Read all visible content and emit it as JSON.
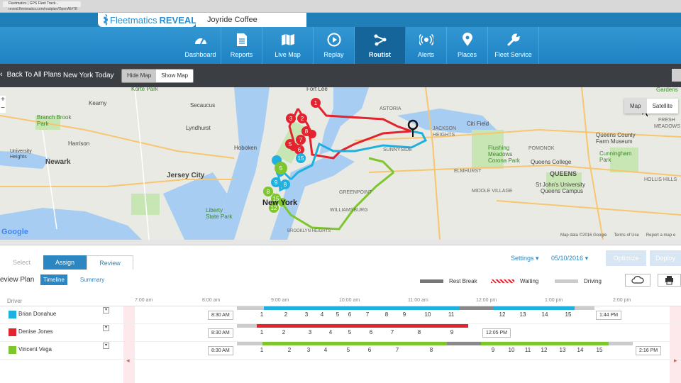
{
  "browser": {
    "tab_title": "Fleetmatics | GPS Fleet Track...",
    "url": "reveal.fleetmatics.com/routplan/OpenAll#78"
  },
  "brand": {
    "name": "Fleetmatics",
    "product": "REVEAL",
    "company": "Joyride Coffee"
  },
  "nav": [
    {
      "label": "Dashboard",
      "icon": "dashboard-icon",
      "active": false
    },
    {
      "label": "Reports",
      "icon": "document-icon",
      "active": false
    },
    {
      "label": "Live Map",
      "icon": "map-icon",
      "active": false
    },
    {
      "label": "Replay",
      "icon": "play-icon",
      "active": false
    },
    {
      "label": "Routist",
      "icon": "route-icon",
      "active": true
    },
    {
      "label": "Alerts",
      "icon": "alert-icon",
      "active": false
    },
    {
      "label": "Places",
      "icon": "pin-icon",
      "active": false
    },
    {
      "label": "Fleet Service",
      "icon": "wrench-icon",
      "active": false
    }
  ],
  "subbar": {
    "back_label": "Back To All Plans",
    "plan_name": "New York Today",
    "hide_map": "Hide Map",
    "show_map": "Show Map"
  },
  "map": {
    "type_map": "Map",
    "type_satellite": "Satellite",
    "credit": "Map data ©2016 Google",
    "terms": "Terms of Use",
    "report": "Report a map e",
    "google": "Google",
    "labels": [
      "Korte Park",
      "Branch Brook Park",
      "Secaucus",
      "Newark",
      "Jersey City",
      "Hoboken",
      "New York",
      "Liberty State Park",
      "Citi Field",
      "Flushing Meadows Corona Park",
      "QUEENS",
      "Queens County Farm Museum",
      "Cunningham Park",
      "Queens College",
      "St John's University Queens Campus",
      "ASTORIA",
      "SUNNYSIDE",
      "JACKSON HEIGHTS",
      "WILLIAMSBURG",
      "BROOKLYN HEIGHTS",
      "University Heights",
      "Kearny",
      "Harrison",
      "Gardens",
      "FRESH MEADOWS",
      "POMONOK",
      "HOLLIS HILLS",
      "Fort Lee",
      "ELMHURST",
      "MIDDLE VILLAGE",
      "GREENPOINT",
      "Lyndhurst"
    ],
    "colors": {
      "blue": "#1fb0e0",
      "red": "#e3232d",
      "green": "#7dc62d"
    }
  },
  "panel": {
    "steps": [
      "Select",
      "Assign",
      "Review"
    ],
    "settings": "Settings",
    "date": "05/10/2016",
    "optimize": "Optimize",
    "deploy": "Deploy",
    "review_title": "eview Plan",
    "timeline": "Timeline",
    "summary": "Summary",
    "legend": {
      "rest": "Rest Break",
      "waiting": "Waiting",
      "driving": "Driving"
    },
    "driver_header": "Driver",
    "hours": [
      "7:00 am",
      "8:00 am",
      "9:00 am",
      "10:00 am",
      "11:00 am",
      "12:00 pm",
      "1:00 pm",
      "2:00 pm"
    ]
  },
  "drivers": [
    {
      "name": "Brian Donahue",
      "color": "#1fb0e0",
      "start": "8:30 AM",
      "end": "1:44 PM",
      "stops": [
        "1",
        "2",
        "3",
        "4",
        "5",
        "6",
        "7",
        "8",
        "9",
        "10",
        "11",
        "12",
        "13",
        "14",
        "15"
      ]
    },
    {
      "name": "Denise Jones",
      "color": "#e3232d",
      "start": "8:30 AM",
      "end": "12:05 PM",
      "stops": [
        "1",
        "2",
        "3",
        "4",
        "5",
        "6",
        "7",
        "8",
        "9"
      ]
    },
    {
      "name": "Vincent Vega",
      "color": "#7dc62d",
      "start": "8:30 AM",
      "end": "2:16 PM",
      "stops": [
        "1",
        "2",
        "3",
        "4",
        "5",
        "6",
        "7",
        "8",
        "9",
        "10",
        "11",
        "12",
        "13",
        "14",
        "15"
      ]
    }
  ]
}
